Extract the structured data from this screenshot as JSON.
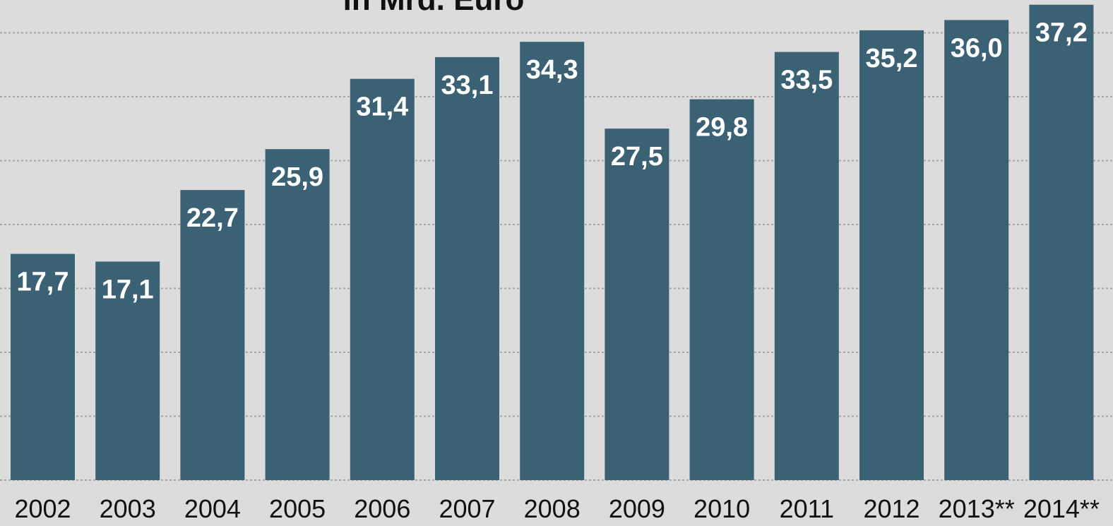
{
  "chart_data": {
    "type": "bar",
    "title": "in Mrd. Euro",
    "categories": [
      "2002",
      "2003",
      "2004",
      "2005",
      "2006",
      "2007",
      "2008",
      "2009",
      "2010",
      "2011",
      "2012",
      "2013**",
      "2014**"
    ],
    "values": [
      17.7,
      17.1,
      22.7,
      25.9,
      31.4,
      33.1,
      34.3,
      27.5,
      29.8,
      33.5,
      35.2,
      36.0,
      37.2
    ],
    "value_labels": [
      "17,7",
      "17,1",
      "22,7",
      "25,9",
      "31,4",
      "33,1",
      "34,3",
      "27,5",
      "29,8",
      "33,5",
      "35,2",
      "36,0",
      "37,2"
    ],
    "ylim": [
      0,
      38
    ],
    "grid": true,
    "colors": {
      "bar": "#3b6175",
      "background": "#dcdcdc",
      "grid": "#a6a6a6",
      "value_label": "#ffffff",
      "text": "#111111"
    }
  }
}
